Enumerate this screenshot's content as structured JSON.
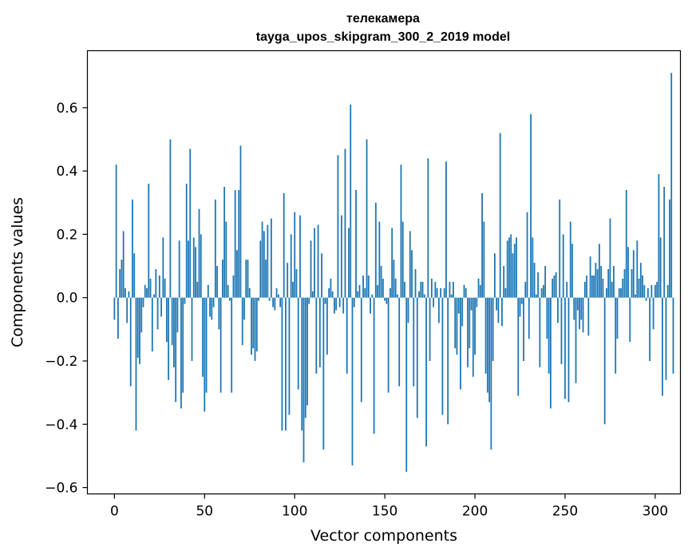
{
  "chart_data": {
    "type": "bar",
    "title": "телекамера",
    "subtitle": "tayga_upos_skipgram_300_2_2019 model",
    "xlabel": "Vector components",
    "ylabel": "Components values",
    "xlim": [
      -15,
      314
    ],
    "ylim": [
      -0.62,
      0.78
    ],
    "xticks": [
      0,
      50,
      100,
      150,
      200,
      250,
      300
    ],
    "yticks": [
      -0.6,
      -0.4,
      -0.2,
      0.0,
      0.2,
      0.4,
      0.6
    ],
    "xtick_labels": [
      "0",
      "50",
      "100",
      "150",
      "200",
      "250",
      "300"
    ],
    "ytick_labels": [
      "−0.6",
      "−0.4",
      "−0.2",
      "0.0",
      "0.2",
      "0.4",
      "0.6"
    ],
    "bar_color": "#1f77b4",
    "grid": false,
    "values": [
      -0.07,
      0.42,
      -0.13,
      0.09,
      0.12,
      0.21,
      0.03,
      -0.08,
      0.02,
      -0.28,
      0.31,
      0.14,
      -0.42,
      -0.19,
      -0.21,
      -0.11,
      -0.03,
      0.04,
      0.03,
      0.36,
      0.06,
      -0.17,
      0.01,
      0.09,
      -0.1,
      0.07,
      -0.06,
      0.19,
      0.06,
      -0.14,
      -0.26,
      0.5,
      -0.15,
      -0.22,
      -0.33,
      -0.11,
      0.18,
      -0.35,
      -0.3,
      -0.02,
      0.36,
      0.18,
      0.47,
      -0.2,
      0.19,
      0.16,
      0.05,
      0.28,
      0.2,
      -0.25,
      -0.36,
      -0.3,
      0.04,
      -0.06,
      -0.07,
      -0.03,
      0.31,
      0.1,
      -0.1,
      -0.3,
      0.12,
      0.35,
      0.24,
      0.04,
      -0.01,
      -0.3,
      0.07,
      0.34,
      0.15,
      0.34,
      0.48,
      -0.15,
      -0.07,
      0.12,
      0.12,
      0.03,
      -0.18,
      -0.16,
      -0.2,
      -0.17,
      -0.01,
      0.18,
      0.24,
      0.21,
      0.12,
      0.23,
      -0.01,
      0.25,
      -0.03,
      -0.04,
      0.03,
      0.01,
      -0.03,
      -0.42,
      0.33,
      -0.42,
      0.11,
      -0.37,
      0.2,
      0.05,
      0.27,
      0.09,
      -0.29,
      0.26,
      -0.42,
      -0.52,
      -0.38,
      -0.34,
      -0.02,
      0.18,
      0.02,
      0.22,
      -0.24,
      0.23,
      -0.22,
      0.14,
      -0.48,
      -0.02,
      -0.18,
      0.03,
      0.06,
      0.02,
      -0.05,
      -0.04,
      0.45,
      -0.03,
      0.26,
      -0.05,
      0.47,
      -0.24,
      0.22,
      0.61,
      -0.53,
      -0.03,
      0.34,
      0.02,
      0.04,
      -0.33,
      0.07,
      0.03,
      0.5,
      0.07,
      -0.05,
      0.01,
      -0.43,
      0.3,
      0.04,
      0.24,
      0.1,
      0.06,
      -0.01,
      -0.02,
      -0.3,
      0.03,
      0.22,
      0.12,
      0.06,
      0.01,
      -0.28,
      0.42,
      0.24,
      0.05,
      -0.55,
      -0.08,
      0.21,
      0.15,
      -0.28,
      0.09,
      -0.38,
      0.02,
      0.05,
      0.05,
      0.01,
      -0.47,
      0.44,
      -0.2,
      0.06,
      -0.03,
      0.05,
      0.03,
      -0.08,
      0.03,
      -0.37,
      0.03,
      0.43,
      -0.4,
      0.05,
      0.01,
      0.05,
      -0.16,
      -0.18,
      -0.05,
      -0.29,
      -0.09,
      0.04,
      0.03,
      -0.22,
      -0.16,
      -0.04,
      -0.25,
      -0.18,
      -0.03,
      0.06,
      0.04,
      0.33,
      0.24,
      -0.24,
      -0.3,
      -0.33,
      -0.48,
      -0.2,
      0.14,
      -0.04,
      -0.08,
      0.52,
      -0.09,
      0.1,
      0.03,
      0.18,
      0.19,
      0.2,
      0.14,
      0.17,
      0.19,
      -0.31,
      -0.06,
      -0.02,
      -0.2,
      0.05,
      0.27,
      -0.13,
      0.58,
      0.19,
      0.11,
      0.01,
      0.08,
      -0.22,
      0.03,
      0.04,
      0.1,
      -0.13,
      -0.24,
      -0.35,
      0.06,
      0.07,
      0.08,
      -0.08,
      0.31,
      -0.21,
      0.2,
      -0.32,
      0.05,
      -0.33,
      0.24,
      0.17,
      -0.07,
      -0.27,
      -0.04,
      -0.1,
      -0.07,
      -0.11,
      0.05,
      0.07,
      -0.12,
      0.13,
      0.07,
      0.07,
      0.11,
      0.09,
      0.17,
      0.1,
      0.06,
      -0.4,
      0.03,
      0.09,
      0.25,
      0.05,
      0.1,
      -0.24,
      -0.13,
      0.03,
      0.03,
      0.06,
      0.09,
      0.34,
      0.16,
      -0.14,
      0.09,
      0.15,
      0.01,
      0.18,
      0.06,
      0.11,
      0.07,
      0.04,
      -0.01,
      0.03,
      -0.2,
      0.04,
      -0.1,
      0.04,
      0.05,
      0.39,
      0.19,
      -0.31,
      0.35,
      -0.26,
      0.04,
      0.31,
      0.71,
      -0.24
    ]
  }
}
